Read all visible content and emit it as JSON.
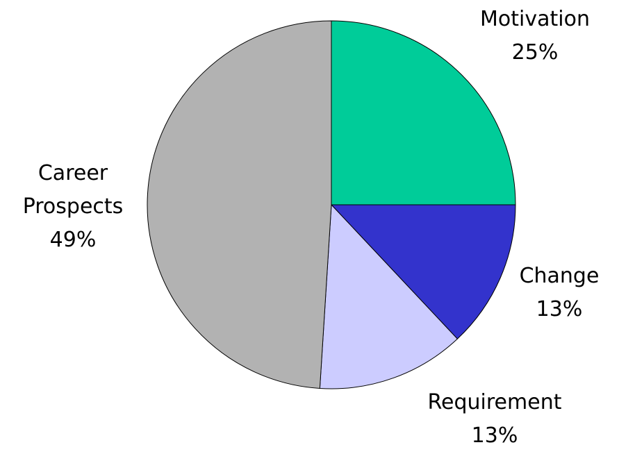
{
  "chart_data": {
    "type": "pie",
    "categories": [
      "Motivation",
      "Change",
      "Requirement",
      "Career Prospects"
    ],
    "values": [
      25,
      13,
      13,
      49
    ],
    "value_labels": [
      "25%",
      "13%",
      "13%",
      "49%"
    ],
    "colors": [
      "#00cc99",
      "#3333cc",
      "#ccccff",
      "#b2b2b2"
    ]
  }
}
